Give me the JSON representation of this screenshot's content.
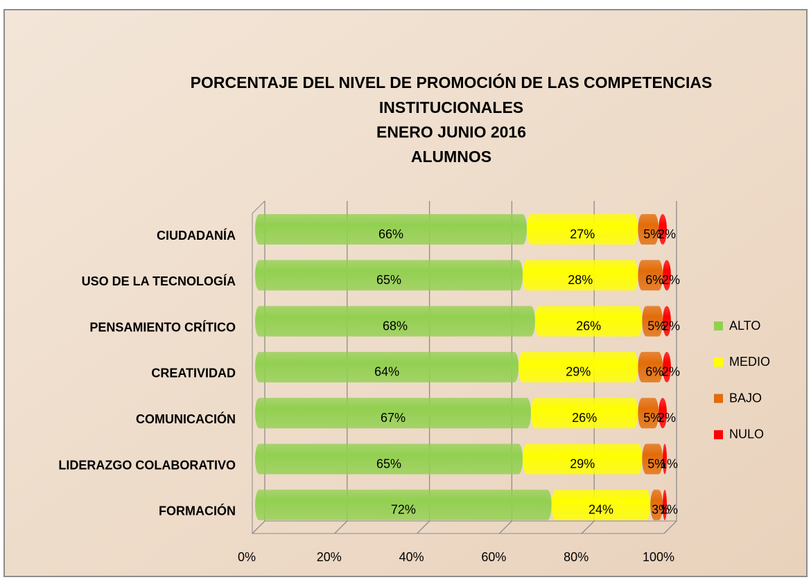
{
  "chart_data": {
    "type": "stacked_barh",
    "title": [
      "PORCENTAJE DEL NIVEL DE PROMOCIÓN DE LAS COMPETENCIAS",
      "INSTITUCIONALES",
      "ENERO JUNIO 2016",
      "ALUMNOS"
    ],
    "categories": [
      "CIUDADANÍA",
      "USO DE LA TECNOLOGÍA",
      "PENSAMIENTO CRÍTICO",
      "CREATIVIDAD",
      "COMUNICACIÓN",
      "LIDERAZGO COLABORATIVO",
      "FORMACIÓN"
    ],
    "series": [
      {
        "name": "ALTO",
        "color": "#92d050",
        "values": [
          66,
          65,
          68,
          64,
          67,
          65,
          72
        ],
        "value_labels": [
          "66%",
          "65%",
          "68%",
          "64%",
          "67%",
          "65%",
          "72%"
        ]
      },
      {
        "name": "MEDIO",
        "color": "#ffff00",
        "values": [
          27,
          28,
          26,
          29,
          26,
          29,
          24
        ],
        "value_labels": [
          "27%",
          "28%",
          "26%",
          "29%",
          "26%",
          "29%",
          "24%"
        ]
      },
      {
        "name": "BAJO",
        "color": "#e36c09",
        "values": [
          5,
          6,
          5,
          6,
          5,
          5,
          3
        ],
        "value_labels": [
          "5%",
          "6%",
          "5%",
          "6%",
          "5%",
          "5%",
          "3%"
        ]
      },
      {
        "name": "NULO",
        "color": "#ff0000",
        "values": [
          2,
          2,
          2,
          2,
          2,
          1,
          1
        ],
        "value_labels": [
          "2%",
          "2%",
          "2%",
          "2%",
          "2%",
          "1%",
          "1%"
        ]
      }
    ],
    "xlim": [
      0,
      100
    ],
    "xticks": [
      {
        "value": 0,
        "label": "0%"
      },
      {
        "value": 20,
        "label": "20%"
      },
      {
        "value": 40,
        "label": "40%"
      },
      {
        "value": 60,
        "label": "60%"
      },
      {
        "value": 80,
        "label": "80%"
      },
      {
        "value": 100,
        "label": "100%"
      }
    ],
    "grid": true,
    "legend": "right"
  }
}
